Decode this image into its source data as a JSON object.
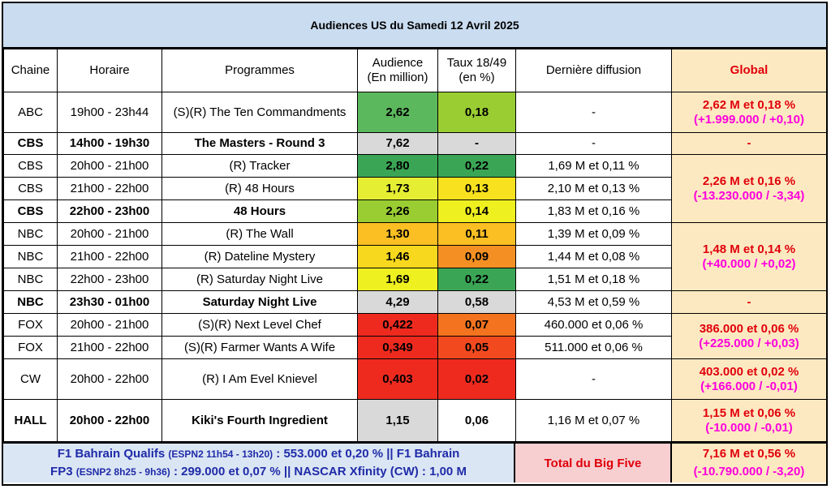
{
  "title": "Audiences US du Samedi 12 Avril 2025",
  "headers": {
    "chaine": "Chaine",
    "horaire": "Horaire",
    "programmes": "Programmes",
    "audience_l1": "Audience",
    "audience_l2": "(En million)",
    "taux_l1": "Taux 18/49",
    "taux_l2": "(en %)",
    "derniere": "Dernière diffusion",
    "global": "Global"
  },
  "rows": [
    {
      "chaine": "ABC",
      "horaire": "19h00 - 23h44",
      "programme": "(S)(R) The Ten Commandments",
      "audience": "2,62",
      "taux": "0,18",
      "derniere": "-",
      "bold": false,
      "aud_color": "#5cb85c",
      "taux_color": "#9acd32"
    },
    {
      "chaine": "CBS",
      "horaire": "14h00 - 19h30",
      "programme": "The Masters - Round 3",
      "audience": "7,62",
      "taux": "-",
      "derniere": "-",
      "bold": true,
      "aud_color": "#d9d9d9",
      "taux_color": "#d9d9d9"
    },
    {
      "chaine": "CBS",
      "horaire": "20h00 - 21h00",
      "programme": "(R) Tracker",
      "audience": "2,80",
      "taux": "0,22",
      "derniere": "1,69 M et 0,11 %",
      "bold": false,
      "aud_color": "#3aa655",
      "taux_color": "#3aa655"
    },
    {
      "chaine": "CBS",
      "horaire": "21h00 - 22h00",
      "programme": "(R) 48 Hours",
      "audience": "1,73",
      "taux": "0,13",
      "derniere": "2,10 M et 0,13 %",
      "bold": false,
      "aud_color": "#e6ee33",
      "taux_color": "#f8e21f"
    },
    {
      "chaine": "CBS",
      "horaire": "22h00 - 23h00",
      "programme": "48 Hours",
      "audience": "2,26",
      "taux": "0,14",
      "derniere": "1,83 M et 0,16 %",
      "bold": true,
      "aud_color": "#9acd32",
      "taux_color": "#eef01f"
    },
    {
      "chaine": "NBC",
      "horaire": "20h00 - 21h00",
      "programme": "(R) The Wall",
      "audience": "1,30",
      "taux": "0,11",
      "derniere": "1,39 M et 0,09 %",
      "bold": false,
      "aud_color": "#fbbf24",
      "taux_color": "#fbbf24"
    },
    {
      "chaine": "NBC",
      "horaire": "21h00 - 22h00",
      "programme": "(R) Dateline Mystery",
      "audience": "1,46",
      "taux": "0,09",
      "derniere": "1,44 M et 0,08 %",
      "bold": false,
      "aud_color": "#f8d81f",
      "taux_color": "#f49023"
    },
    {
      "chaine": "NBC",
      "horaire": "22h00 - 23h00",
      "programme": "(R) Saturday Night Live",
      "audience": "1,69",
      "taux": "0,22",
      "derniere": "1,51 M et 0,18 %",
      "bold": false,
      "aud_color": "#eef01f",
      "taux_color": "#3aa655"
    },
    {
      "chaine": "NBC",
      "horaire": "23h30 - 01h00",
      "programme": "Saturday Night Live",
      "audience": "4,29",
      "taux": "0,58",
      "derniere": "4,53 M et 0,59 %",
      "bold": true,
      "aud_color": "#d9d9d9",
      "taux_color": "#d9d9d9"
    },
    {
      "chaine": "FOX",
      "horaire": "20h00 - 21h00",
      "programme": "(S)(R) Next Level Chef",
      "audience": "0,422",
      "taux": "0,07",
      "derniere": "460.000 et 0,06 %",
      "bold": false,
      "aud_color": "#ee2a1f",
      "taux_color": "#f4731e"
    },
    {
      "chaine": "FOX",
      "horaire": "21h00 - 22h00",
      "programme": "(S)(R) Farmer Wants A Wife",
      "audience": "0,349",
      "taux": "0,05",
      "derniere": "511.000 et 0,06 %",
      "bold": false,
      "aud_color": "#ee2a1f",
      "taux_color": "#f24a1e"
    },
    {
      "chaine": "CW",
      "horaire": "20h00 - 22h00",
      "programme": "(R) I Am Evel Knievel",
      "audience": "0,403",
      "taux": "0,02",
      "derniere": "-",
      "bold": false,
      "aud_color": "#ee2a1f",
      "taux_color": "#ee2a1f"
    },
    {
      "chaine": "HALL",
      "horaire": "20h00 - 22h00",
      "programme": "Kiki's Fourth Ingredient",
      "audience": "1,15",
      "taux": "0,06",
      "derniere": "1,16 M et 0,07 %",
      "bold": true,
      "aud_color": "#d9d9d9",
      "taux_color": "#ffffff"
    }
  ],
  "global": {
    "abc": {
      "l1": "2,62 M et 0,18 %",
      "l2": "(+1.999.000 / +0,10)"
    },
    "cbs_masters": "-",
    "cbs": {
      "l1": "2,26 M et 0,16 %",
      "l2": "(-13.230.000 / -3,34)"
    },
    "nbc": {
      "l1": "1,48 M et 0,14 %",
      "l2": "(+40.000 / +0,02)"
    },
    "nbc_snl": "-",
    "fox": {
      "l1": "386.000 et 0,06 %",
      "l2": "(+225.000 / +0,03)"
    },
    "cw": {
      "l1": "403.000 et 0,02 %",
      "l2": "(+166.000 / -0,01)"
    },
    "hall": {
      "l1": "1,15 M et 0,06 %",
      "l2": "(-10.000 / -0,01)"
    }
  },
  "footer": {
    "sports_l1a": "F1 Bahrain Qualifs ",
    "sports_l1b": "(ESPN2 11h54 - 13h20)",
    "sports_l1c": " : 553.000 et 0,20 % || F1 Bahrain",
    "sports_l2a": "FP3 ",
    "sports_l2b": "(ESNP2 8h25 - 9h36)",
    "sports_l2c": " : 299.000 et 0,07 % || NASCAR Xfinity (CW) : 1,00 M",
    "big_five_label": "Total du Big Five",
    "big_five_l1": "7,16 M et 0,56 %",
    "big_five_l2": "(-10.790.000 / -3,20)"
  },
  "colors": {
    "header_bg": "#c9dcf0",
    "global_bg": "#fde9c1",
    "global_text": "#e0000b",
    "global_delta": "#ff00dd",
    "footer_left_bg": "#dbe6f4",
    "footer_left_text": "#1f2ba8",
    "footer_mid_bg": "#f7cfd1"
  }
}
